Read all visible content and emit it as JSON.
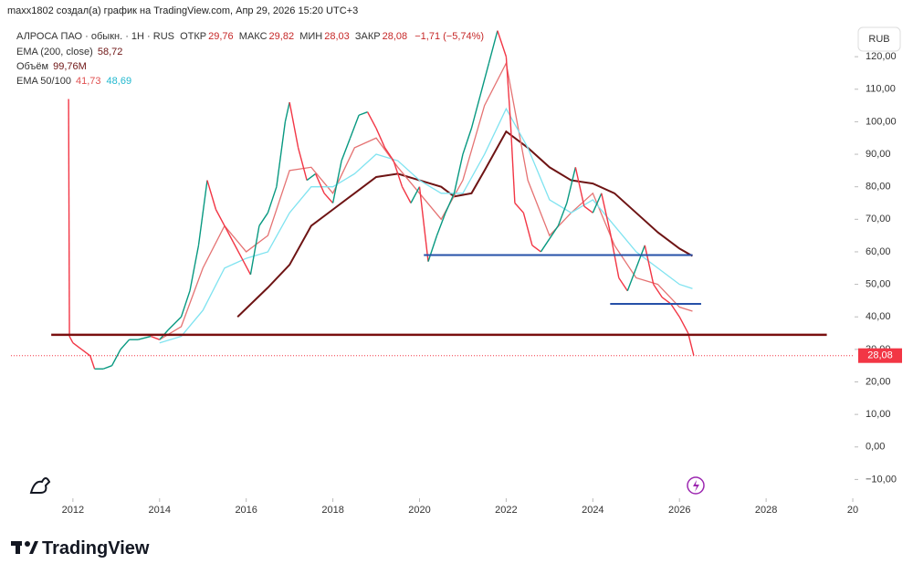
{
  "header": {
    "attribution": "maxx1802 создал(а) график на TradingView.com, Апр 29, 2026 15:20 UTC+3"
  },
  "legend": {
    "symbol": "АЛРОСА ПАО · обыкн. · 1Н · RUS",
    "open_label": "ОТКР",
    "open": "29,76",
    "high_label": "МАКС",
    "high": "29,82",
    "low_label": "МИН",
    "low": "28,03",
    "close_label": "ЗАКР",
    "close": "28,08",
    "change": "−1,71 (−5,74%)",
    "ema200_label": "EMA (200, close)",
    "ema200": "58,72",
    "volume_label": "Объём",
    "volume": "99,76M",
    "ema_pair_label": "EMA 50/100",
    "ema50": "41,73",
    "ema100": "48,69"
  },
  "currency": "RUB",
  "brand": "TradingView",
  "chart_data": {
    "type": "line",
    "x": [
      2011.9,
      2011.92,
      2012.0,
      2012.2,
      2012.4,
      2012.5,
      2012.7,
      2012.9,
      2013.1,
      2013.3,
      2013.5,
      2013.8,
      2014.0,
      2014.2,
      2014.5,
      2014.7,
      2014.9,
      2015.1,
      2015.3,
      2015.5,
      2015.7,
      2015.9,
      2016.1,
      2016.3,
      2016.5,
      2016.7,
      2016.9,
      2017.0,
      2017.2,
      2017.4,
      2017.6,
      2017.8,
      2018.0,
      2018.2,
      2018.4,
      2018.6,
      2018.8,
      2019.0,
      2019.2,
      2019.4,
      2019.6,
      2019.8,
      2020.0,
      2020.2,
      2020.4,
      2020.6,
      2020.8,
      2021.0,
      2021.2,
      2021.4,
      2021.6,
      2021.8,
      2022.0,
      2022.1,
      2022.2,
      2022.4,
      2022.6,
      2022.8,
      2023.0,
      2023.2,
      2023.4,
      2023.6,
      2023.8,
      2024.0,
      2024.2,
      2024.4,
      2024.6,
      2024.8,
      2025.0,
      2025.2,
      2025.4,
      2025.6,
      2025.8,
      2026.0,
      2026.2,
      2026.33
    ],
    "values": [
      107,
      34,
      32,
      30,
      28,
      24,
      24,
      25,
      30,
      33,
      33,
      34,
      33,
      36,
      40,
      48,
      62,
      82,
      73,
      68,
      63,
      58,
      53,
      68,
      72,
      80,
      100,
      106,
      92,
      82,
      84,
      78,
      75,
      88,
      95,
      102,
      103,
      98,
      92,
      88,
      80,
      75,
      80,
      57,
      65,
      72,
      78,
      90,
      98,
      108,
      118,
      128,
      120,
      100,
      75,
      72,
      62,
      60,
      64,
      68,
      75,
      86,
      74,
      72,
      78,
      66,
      52,
      48,
      55,
      62,
      50,
      46,
      44,
      40,
      35,
      28.08
    ],
    "up_color": "#089981",
    "down_color": "#f23645",
    "overlays": [
      {
        "color": "#6e1414",
        "x": [
          2015.8,
          2016.5,
          2017.0,
          2017.5,
          2018.0,
          2018.5,
          2019.0,
          2019.5,
          2020.0,
          2020.5,
          2020.8,
          2021.2,
          2021.5,
          2022.0,
          2022.5,
          2023.0,
          2023.5,
          2024.0,
          2024.5,
          2025.0,
          2025.5,
          2026.0,
          2026.3
        ],
        "values": [
          40,
          49,
          56,
          68,
          73,
          78,
          83,
          84,
          82,
          80,
          77,
          78,
          85,
          97,
          92,
          86,
          82,
          81,
          78,
          72,
          66,
          61,
          58.72
        ]
      },
      {
        "color": "#e57373",
        "x": [
          2014.0,
          2014.5,
          2015.0,
          2015.5,
          2016.0,
          2016.5,
          2017.0,
          2017.5,
          2018.0,
          2018.5,
          2019.0,
          2019.5,
          2020.0,
          2020.5,
          2021.0,
          2021.5,
          2022.0,
          2022.5,
          2023.0,
          2023.5,
          2024.0,
          2024.5,
          2025.0,
          2025.5,
          2026.0,
          2026.3
        ],
        "values": [
          33,
          37,
          55,
          68,
          60,
          65,
          85,
          86,
          78,
          92,
          95,
          86,
          78,
          70,
          82,
          105,
          118,
          82,
          65,
          72,
          78,
          62,
          52,
          50,
          43,
          41.73
        ]
      },
      {
        "color": "#7fe3f0",
        "x": [
          2014.0,
          2014.5,
          2015.0,
          2015.5,
          2016.0,
          2016.5,
          2017.0,
          2017.5,
          2018.0,
          2018.5,
          2019.0,
          2019.5,
          2020.0,
          2020.5,
          2021.0,
          2021.5,
          2022.0,
          2022.5,
          2023.0,
          2023.5,
          2024.0,
          2024.5,
          2025.0,
          2025.5,
          2026.0,
          2026.3
        ],
        "values": [
          32,
          34,
          42,
          55,
          58,
          60,
          72,
          80,
          80,
          84,
          90,
          88,
          82,
          78,
          78,
          90,
          104,
          92,
          76,
          72,
          76,
          68,
          60,
          55,
          50,
          48.69
        ]
      }
    ],
    "levels": [
      {
        "value": 34.5,
        "from": 2011.5,
        "to": 2029.4,
        "color": "#7a1010"
      },
      {
        "value": 59,
        "from": 2020.1,
        "to": 2026.3,
        "color": "#2650a8"
      },
      {
        "value": 44,
        "from": 2024.4,
        "to": 2026.5,
        "color": "#2650a8"
      }
    ],
    "last_price": {
      "value": 28.08,
      "label": "28,08"
    },
    "xlim": [
      2010.57,
      2030.02
    ],
    "xticks": [
      2012,
      2014,
      2016,
      2018,
      2020,
      2022,
      2024,
      2026,
      2028,
      {
        "value": 2030,
        "label": "20"
      }
    ],
    "ylim": [
      -15.5,
      130.7
    ],
    "yticks": [
      {
        "value": -10,
        "label": "−10,00"
      },
      {
        "value": 0,
        "label": "0,00"
      },
      {
        "value": 10,
        "label": "10,00"
      },
      {
        "value": 20,
        "label": "20,00"
      },
      {
        "value": 30,
        "label": "30,00"
      },
      {
        "value": 40,
        "label": "40,00"
      },
      {
        "value": 50,
        "label": "50,00"
      },
      {
        "value": 60,
        "label": "60,00"
      },
      {
        "value": 70,
        "label": "70,00"
      },
      {
        "value": 80,
        "label": "80,00"
      },
      {
        "value": 90,
        "label": "90,00"
      },
      {
        "value": 100,
        "label": "100,00"
      },
      {
        "value": 110,
        "label": "110,00"
      },
      {
        "value": 120,
        "label": "120,00"
      }
    ]
  }
}
